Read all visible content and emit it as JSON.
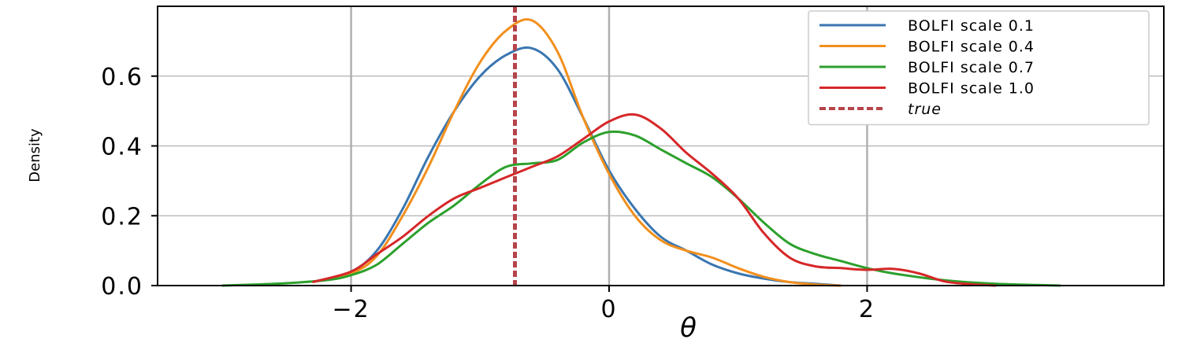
{
  "chart_data": {
    "type": "line",
    "xlabel": "θ",
    "ylabel": "Density",
    "xlim": [
      -3.5,
      4.3
    ],
    "ylim": [
      0,
      0.8
    ],
    "xticks": [
      -2,
      0,
      2
    ],
    "xtick_labels": [
      "−2",
      "0",
      "2"
    ],
    "yticks": [
      0.0,
      0.2,
      0.4,
      0.6
    ],
    "ytick_labels": [
      "0.0",
      "0.2",
      "0.4",
      "0.6"
    ],
    "grid": true,
    "legend_position": "top-right",
    "series": [
      {
        "name": "BOLFI scale 0.1",
        "color": "#3a76b0",
        "x": [
          -2.3,
          -2.0,
          -1.8,
          -1.6,
          -1.4,
          -1.2,
          -1.0,
          -0.8,
          -0.6,
          -0.4,
          -0.2,
          0.0,
          0.2,
          0.4,
          0.6,
          0.8,
          1.0,
          1.2,
          1.4,
          1.6,
          1.8
        ],
        "y": [
          0.01,
          0.04,
          0.1,
          0.22,
          0.37,
          0.5,
          0.6,
          0.66,
          0.68,
          0.62,
          0.48,
          0.33,
          0.22,
          0.14,
          0.1,
          0.06,
          0.035,
          0.02,
          0.01,
          0.005,
          0.0
        ]
      },
      {
        "name": "BOLFI scale 0.4",
        "color": "#f28f1c",
        "x": [
          -2.3,
          -2.0,
          -1.8,
          -1.6,
          -1.4,
          -1.2,
          -1.0,
          -0.8,
          -0.6,
          -0.4,
          -0.2,
          0.0,
          0.2,
          0.4,
          0.6,
          0.8,
          1.0,
          1.2,
          1.4,
          1.6,
          1.8
        ],
        "y": [
          0.01,
          0.035,
          0.085,
          0.2,
          0.34,
          0.5,
          0.64,
          0.73,
          0.76,
          0.67,
          0.48,
          0.32,
          0.2,
          0.13,
          0.1,
          0.08,
          0.05,
          0.025,
          0.01,
          0.003,
          0.0
        ]
      },
      {
        "name": "BOLFI scale 0.7",
        "color": "#2ca02c",
        "x": [
          -3.0,
          -2.6,
          -2.2,
          -2.0,
          -1.8,
          -1.6,
          -1.4,
          -1.2,
          -1.0,
          -0.8,
          -0.6,
          -0.4,
          -0.2,
          0.0,
          0.2,
          0.4,
          0.6,
          0.8,
          1.0,
          1.2,
          1.4,
          1.6,
          1.8,
          2.0,
          2.2,
          2.6,
          3.0,
          3.5
        ],
        "y": [
          0.0,
          0.005,
          0.015,
          0.03,
          0.06,
          0.12,
          0.18,
          0.23,
          0.29,
          0.34,
          0.35,
          0.36,
          0.41,
          0.44,
          0.43,
          0.39,
          0.35,
          0.31,
          0.25,
          0.18,
          0.12,
          0.09,
          0.07,
          0.05,
          0.035,
          0.015,
          0.005,
          0.0
        ]
      },
      {
        "name": "BOLFI scale 1.0",
        "color": "#d62728",
        "x": [
          -2.3,
          -2.0,
          -1.8,
          -1.6,
          -1.4,
          -1.2,
          -1.0,
          -0.8,
          -0.6,
          -0.4,
          -0.2,
          0.0,
          0.2,
          0.4,
          0.6,
          0.8,
          1.0,
          1.2,
          1.4,
          1.6,
          1.8,
          2.0,
          2.2,
          2.4,
          2.6,
          2.8,
          3.0
        ],
        "y": [
          0.01,
          0.04,
          0.09,
          0.14,
          0.2,
          0.25,
          0.28,
          0.31,
          0.34,
          0.37,
          0.42,
          0.47,
          0.49,
          0.45,
          0.38,
          0.32,
          0.25,
          0.15,
          0.08,
          0.055,
          0.05,
          0.045,
          0.048,
          0.035,
          0.012,
          0.004,
          0.0
        ]
      }
    ],
    "reference_lines": [
      {
        "name": "true",
        "x": -0.73,
        "color": "#b5444a",
        "style": "dashed"
      }
    ]
  }
}
